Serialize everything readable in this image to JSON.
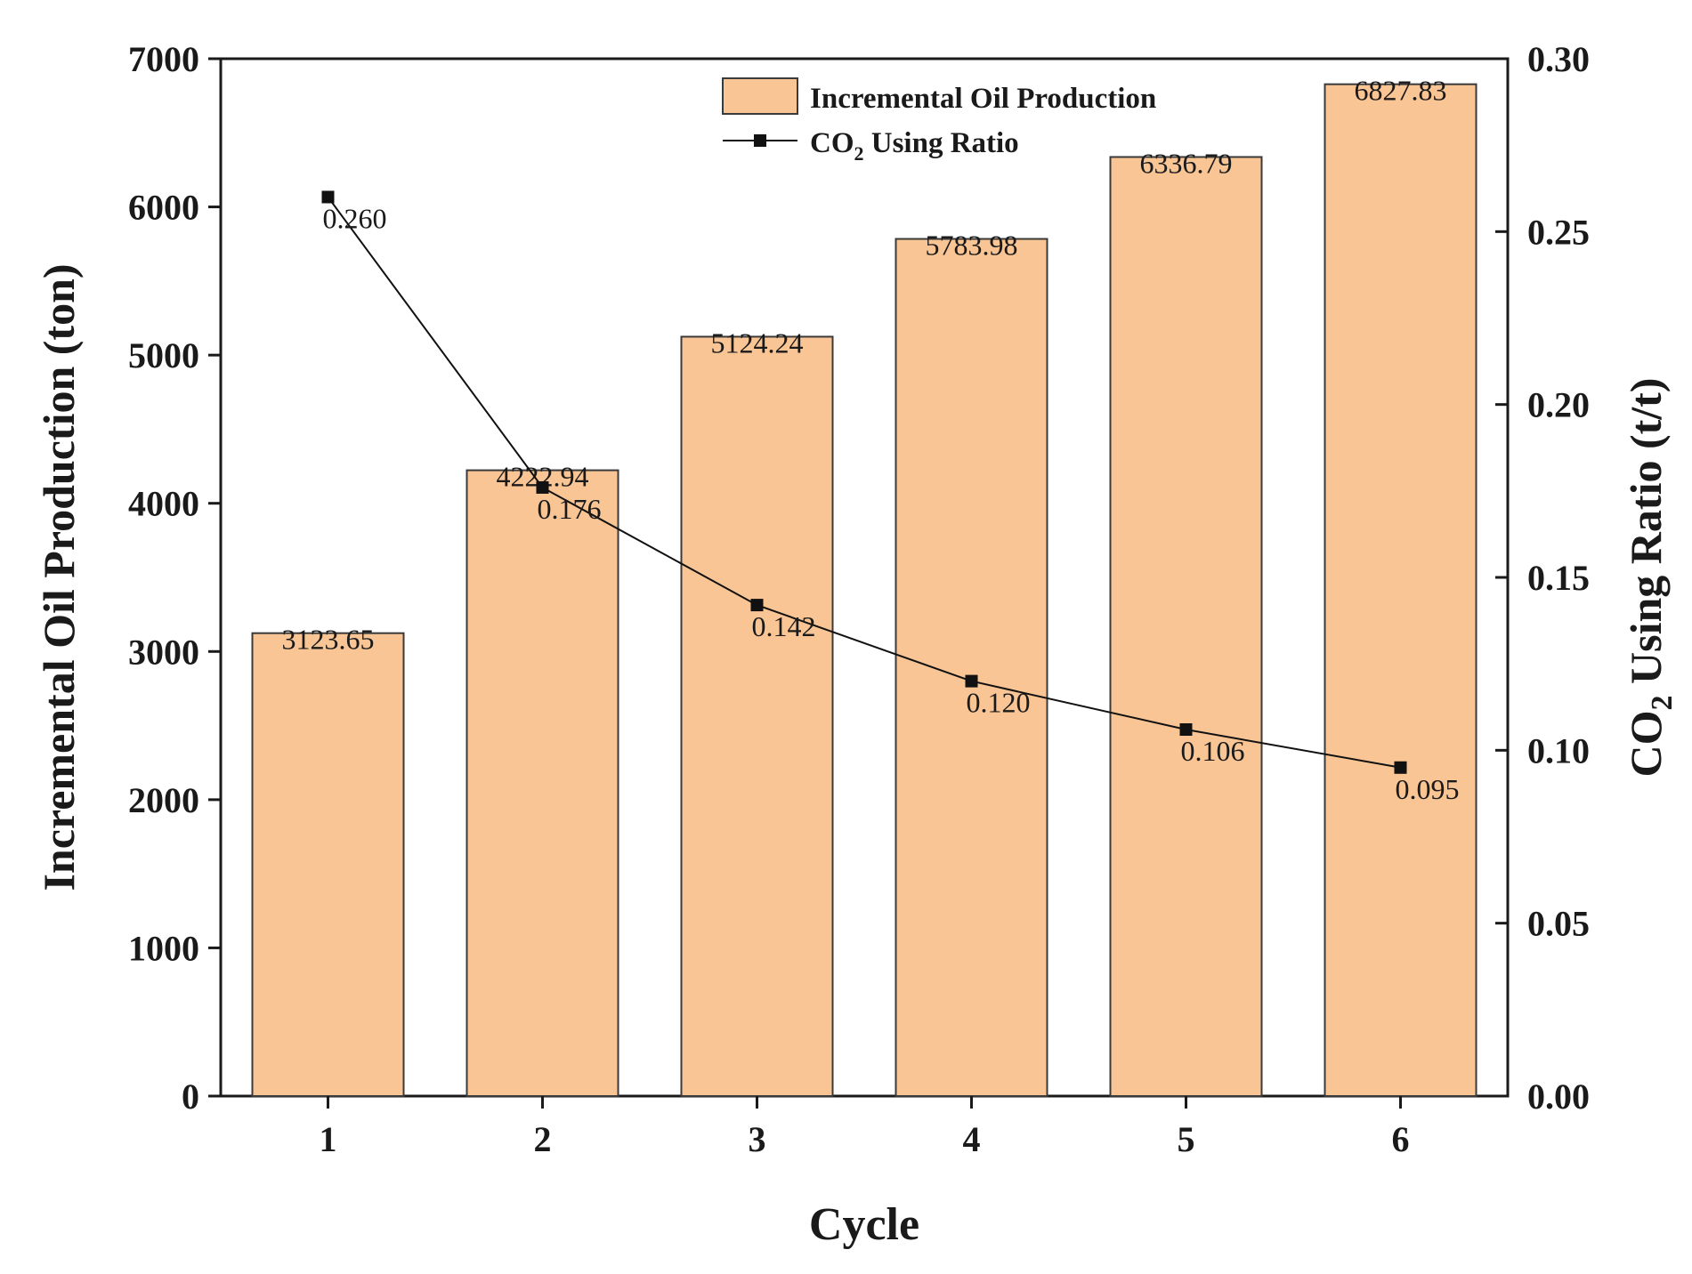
{
  "chart_data": {
    "type": "bar+line",
    "categories": [
      "1",
      "2",
      "3",
      "4",
      "5",
      "6"
    ],
    "xlabel": "Cycle",
    "series": [
      {
        "name": "Incremental Oil Production",
        "kind": "bar",
        "axis": "left",
        "values": [
          3123.65,
          4222.94,
          5124.24,
          5783.98,
          6336.79,
          6827.83
        ],
        "labels": [
          "3123.65",
          "4222.94",
          "5124.24",
          "5783.98",
          "6336.79",
          "6827.83"
        ],
        "fill": "#f9c594",
        "stroke": "#3a3a3a"
      },
      {
        "name_prefix": "CO",
        "name_subscript": "2",
        "name_suffix": " Using Ratio",
        "kind": "line",
        "axis": "right",
        "values": [
          0.26,
          0.176,
          0.142,
          0.12,
          0.106,
          0.095
        ],
        "labels": [
          "0.260",
          "0.176",
          "0.142",
          "0.120",
          "0.106",
          "0.095"
        ],
        "color": "#111111"
      }
    ],
    "y_left": {
      "label": "Incremental Oil Production (ton)",
      "range": [
        0,
        7000
      ],
      "ticks": [
        "0",
        "1000",
        "2000",
        "3000",
        "4000",
        "5000",
        "6000",
        "7000"
      ],
      "tick_values": [
        0,
        1000,
        2000,
        3000,
        4000,
        5000,
        6000,
        7000
      ]
    },
    "y_right": {
      "label_prefix": "CO",
      "label_subscript": "2",
      "label_suffix": " Using Ratio (t/t)",
      "range": [
        0,
        0.3
      ],
      "ticks": [
        "0.00",
        "0.05",
        "0.10",
        "0.15",
        "0.20",
        "0.25",
        "0.30"
      ],
      "tick_values": [
        0,
        0.05,
        0.1,
        0.15,
        0.2,
        0.25,
        0.3
      ]
    },
    "legend_position": "top-center",
    "grid": false
  }
}
